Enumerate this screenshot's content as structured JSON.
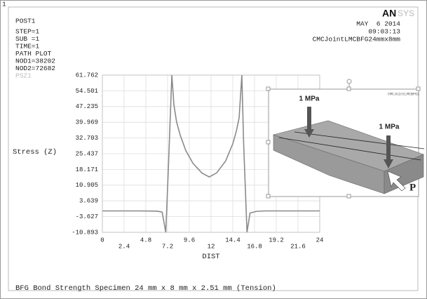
{
  "window_number": "1",
  "header": {
    "program": "POST1",
    "info": [
      "STEP=1",
      "SUB =1",
      "TIME=1",
      "PATH PLOT",
      "NOD1=38202",
      "NOD2=72682"
    ],
    "logo": {
      "bold": "AN",
      "light": "SYS"
    },
    "date": "MAY  6 2014",
    "time": "09:03:13",
    "jobname": "CMCJointLMCBFG24mmx8mm"
  },
  "chart_data": {
    "type": "line",
    "ylabel": "Stress (Z)",
    "xlabel": "DIST",
    "caption": "BFG Bond Strength Specimen 24 mm x 8 mm x 2.51 mm (Tension)",
    "x": [
      0,
      2,
      4,
      6,
      6.6,
      7.0,
      7.3,
      7.67,
      7.9,
      8.2,
      8.6,
      9.2,
      10,
      11,
      11.8,
      12.6,
      13.6,
      14.4,
      14.8,
      15.1,
      15.4,
      15.6,
      15.97,
      16.3,
      17,
      18,
      20,
      22,
      24
    ],
    "series": [
      {
        "name": "PSZ1",
        "color": "#8a8a8a",
        "values": [
          -1,
          -1,
          -1,
          -1.1,
          -1.5,
          -10.9,
          20,
          61.762,
          48,
          40,
          34,
          27,
          21,
          16.5,
          14.7,
          16.5,
          22,
          30,
          36,
          42,
          61.762,
          30,
          -10.9,
          -2,
          -1.2,
          -1,
          -1,
          -1,
          -1
        ]
      }
    ],
    "xlim": [
      0,
      24
    ],
    "xticks": [
      0,
      2.4,
      4.8,
      7.2,
      9.6,
      12,
      14.4,
      16.8,
      19.2,
      21.6,
      24
    ],
    "ylim": [
      -10.893,
      61.762
    ],
    "yticks": [
      61.762,
      54.501,
      47.235,
      39.969,
      32.703,
      25.437,
      18.171,
      10.905,
      3.639,
      -3.627,
      -10.893
    ],
    "grid": true
  },
  "inset": {
    "corner_label": "CMCJointLMCBFG2",
    "load_left": "1 MPa",
    "load_right": "1 MPa",
    "point": "P"
  }
}
